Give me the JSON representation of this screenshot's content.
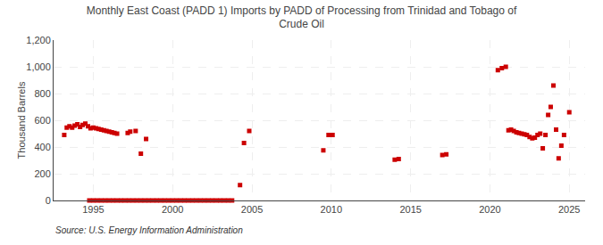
{
  "chart_data": {
    "type": "scatter",
    "title": "Monthly East Coast (PADD 1) Imports by PADD of Processing from Trinidad and Tobago of\nCrude Oil",
    "ylabel": "Thousand Barrels",
    "source": "Source: U.S. Energy Information Administration",
    "color": "#cc0000",
    "marker": "square",
    "grid": true,
    "xlim": [
      1992.5,
      2026
    ],
    "xticks": [
      1995,
      2000,
      2005,
      2010,
      2015,
      2020,
      2025
    ],
    "ylim": [
      0,
      1200
    ],
    "yticks": [
      0,
      200,
      400,
      600,
      800,
      {
        "value": 1000,
        "label": "1,000"
      },
      {
        "value": 1200,
        "label": "1,200"
      }
    ],
    "x": [
      1993.17,
      1993.33,
      1993.5,
      1993.67,
      1993.83,
      1994.0,
      1994.17,
      1994.33,
      1994.5,
      1994.67,
      1994.83,
      1995.0,
      1995.17,
      1995.33,
      1995.5,
      1995.67,
      1995.83,
      1996.0,
      1996.17,
      1996.33,
      1996.5,
      1997.17,
      1997.33,
      1997.67,
      1998.0,
      1998.33,
      1994.75,
      1995.0,
      1995.25,
      1995.5,
      1995.75,
      1996.0,
      1996.25,
      1996.5,
      1996.75,
      1997.0,
      1997.25,
      1997.5,
      1997.75,
      1998.0,
      1998.25,
      1998.5,
      1998.75,
      1999.0,
      1999.25,
      1999.5,
      1999.75,
      2000.0,
      2000.25,
      2000.5,
      2000.75,
      2001.0,
      2001.25,
      2001.5,
      2001.75,
      2002.0,
      2002.25,
      2002.5,
      2002.75,
      2003.0,
      2003.25,
      2003.5,
      2003.75,
      2004.25,
      2004.5,
      2004.83,
      2009.5,
      2009.83,
      2010.08,
      2014.0,
      2014.25,
      2017.0,
      2017.25,
      2020.5,
      2020.75,
      2021.0,
      2021.17,
      2021.33,
      2021.5,
      2021.67,
      2021.83,
      2022.0,
      2022.17,
      2022.33,
      2022.5,
      2022.67,
      2022.83,
      2023.0,
      2023.17,
      2023.33,
      2023.5,
      2023.67,
      2023.83,
      2024.0,
      2024.17,
      2024.33,
      2024.5,
      2024.67,
      2025.0
    ],
    "values": [
      490,
      545,
      555,
      545,
      560,
      570,
      550,
      565,
      575,
      555,
      540,
      545,
      540,
      535,
      530,
      525,
      520,
      515,
      510,
      505,
      500,
      505,
      515,
      520,
      350,
      460,
      0,
      0,
      0,
      0,
      0,
      0,
      0,
      0,
      0,
      0,
      0,
      0,
      0,
      0,
      0,
      0,
      0,
      0,
      0,
      0,
      0,
      0,
      0,
      0,
      0,
      0,
      0,
      0,
      0,
      0,
      0,
      0,
      0,
      0,
      0,
      0,
      0,
      115,
      430,
      520,
      375,
      490,
      490,
      305,
      310,
      340,
      345,
      975,
      990,
      1000,
      525,
      530,
      520,
      510,
      505,
      500,
      495,
      490,
      475,
      465,
      470,
      490,
      500,
      390,
      490,
      640,
      700,
      860,
      530,
      315,
      410,
      490,
      660
    ]
  }
}
